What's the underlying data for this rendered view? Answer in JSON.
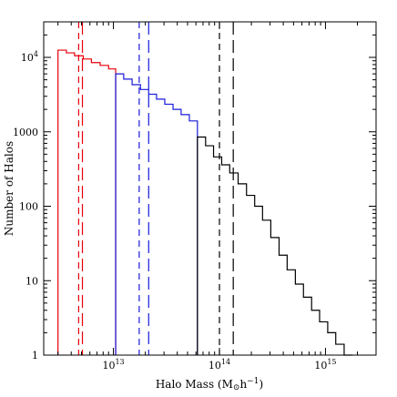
{
  "chart_data": {
    "type": "histogram-step",
    "xlabel": "Halo Mass (M",
    "xlabel_sub": "⊙",
    "xlabel_tail": "h",
    "xlabel_sup": "−1",
    "xlabel_close": ")",
    "ylabel": "Number of Halos",
    "xscale": "log",
    "yscale": "log",
    "xlim": [
      2200000000000.0,
      3000000000000000.0
    ],
    "ylim": [
      1,
      30000
    ],
    "x_ticks": [
      {
        "value": 10000000000000.0,
        "base": "10",
        "exp": "13"
      },
      {
        "value": 100000000000000.0,
        "base": "10",
        "exp": "14"
      },
      {
        "value": 1000000000000000.0,
        "base": "10",
        "exp": "15"
      }
    ],
    "y_ticks": [
      {
        "value": 1,
        "label": "1"
      },
      {
        "value": 10,
        "label": "10"
      },
      {
        "value": 100,
        "label": "100"
      },
      {
        "value": 1000,
        "label": "1000"
      },
      {
        "value": 10000,
        "base": "10",
        "exp": "4"
      }
    ],
    "series": [
      {
        "color": "#e8000b",
        "x": [
          3000000000000.0,
          3600000000000.0,
          4300000000000.0,
          5200000000000.0,
          6200000000000.0,
          7500000000000.0,
          9000000000000.0,
          10500000000000.0
        ],
        "y": [
          12500,
          11500,
          10500,
          9500,
          8500,
          7800,
          7000
        ]
      },
      {
        "color": "#1a1adb",
        "x": [
          10500000000000.0,
          12500000000000.0,
          15000000000000.0,
          18000000000000.0,
          21500000000000.0,
          25500000000000.0,
          30500000000000.0,
          36500000000000.0,
          43500000000000.0,
          52000000000000.0,
          62000000000000.0
        ],
        "y": [
          6000,
          5100,
          4300,
          3700,
          3200,
          2750,
          2350,
          2000,
          1700,
          1400
        ]
      },
      {
        "color": "#000000",
        "x": [
          62000000000000.0,
          74000000000000.0,
          88000000000000.0,
          105000000000000.0,
          125000000000000.0,
          150000000000000.0,
          180000000000000.0,
          215000000000000.0,
          255000000000000.0,
          305000000000000.0,
          365000000000000.0,
          435000000000000.0,
          520000000000000.0,
          620000000000000.0,
          740000000000000.0,
          880000000000000.0,
          1050000000000000.0,
          1250000000000000.0,
          1500000000000000.0,
          1800000000000000.0
        ],
        "y": [
          850,
          650,
          460,
          360,
          280,
          200,
          140,
          100,
          65,
          38,
          22,
          14,
          9,
          6,
          4,
          2.8,
          2.0,
          1.4,
          1.0
        ]
      }
    ],
    "vlines": [
      {
        "x": 4700000000000.0,
        "color": "#e8000b",
        "dash": "short"
      },
      {
        "x": 5100000000000.0,
        "color": "#e8000b",
        "dash": "long"
      },
      {
        "x": 17500000000000.0,
        "color": "#1a1adb",
        "dash": "short"
      },
      {
        "x": 21500000000000.0,
        "color": "#1a1adb",
        "dash": "long"
      },
      {
        "x": 100000000000000.0,
        "color": "#000000",
        "dash": "short"
      },
      {
        "x": 135000000000000.0,
        "color": "#000000",
        "dash": "long"
      }
    ]
  }
}
